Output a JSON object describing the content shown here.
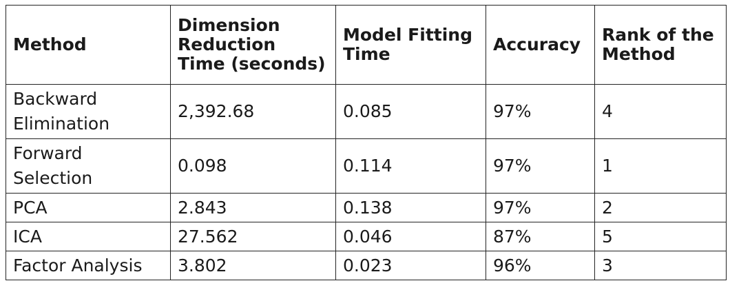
{
  "table": {
    "headers": [
      "Method",
      "Dimension Reduction Time (seconds)",
      "Model Fitting Time",
      "Accuracy",
      "Rank of the Method"
    ],
    "rows": [
      [
        "Backward Elimination",
        "2,392.68",
        "0.085",
        "97%",
        "4"
      ],
      [
        "Forward Selection",
        "0.098",
        "0.114",
        "97%",
        "1"
      ],
      [
        "PCA",
        "2.843",
        "0.138",
        "97%",
        "2"
      ],
      [
        "ICA",
        "27.562",
        "0.046",
        "87%",
        "5"
      ],
      [
        "Factor Analysis",
        "3.802",
        "0.023",
        "96%",
        "3"
      ]
    ]
  }
}
